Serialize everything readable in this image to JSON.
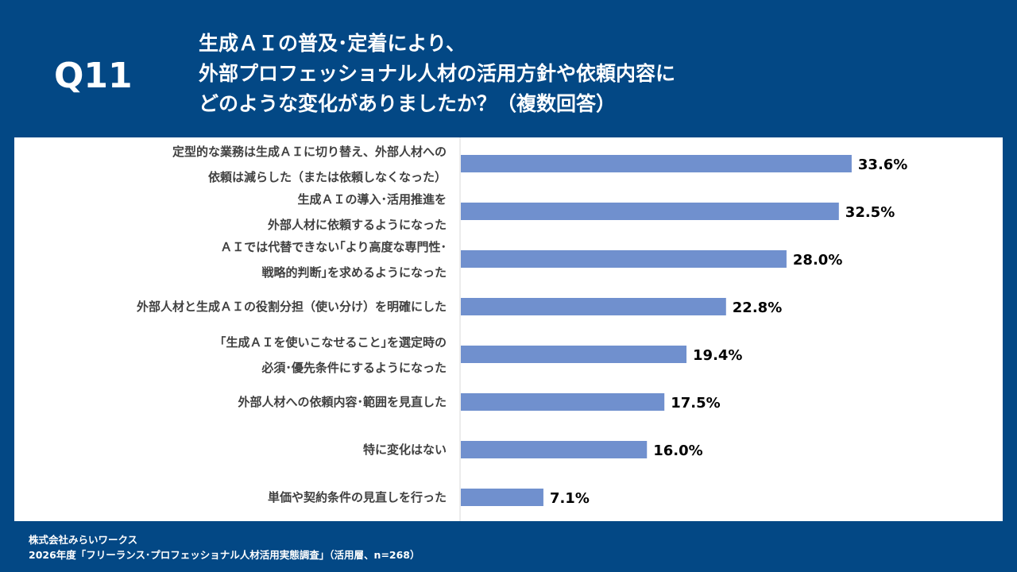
{
  "header": {
    "question_no": "Q11",
    "title_lines": [
      "生成ＡＩの普及･定着により、",
      "外部プロフェッショナル人材の活用方針や依頼内容に",
      "どのような変化がありましたか？（複数回答）"
    ]
  },
  "chart_data": {
    "type": "bar",
    "orientation": "horizontal",
    "categories": [
      [
        "定型的な業務は生成ＡＩに切り替え、外部人材への",
        "依頼は減らした（または依頼しなくなった）"
      ],
      [
        "生成ＡＩの導入･活用推進を",
        "外部人材に依頼するようになった"
      ],
      [
        "ＡＩでは代替できない｢より高度な専門性･",
        "戦略的判断｣を求めるようになった"
      ],
      [
        "外部人材と生成ＡＩの役割分担（使い分け）を明確にした"
      ],
      [
        "｢生成ＡＩを使いこなせること｣を選定時の",
        "必須･優先条件にするようになった"
      ],
      [
        "外部人材への依頼内容･範囲を見直した"
      ],
      [
        "特に変化はない"
      ],
      [
        "単価や契約条件の見直しを行った"
      ]
    ],
    "values": [
      33.6,
      32.5,
      28.0,
      22.8,
      19.4,
      17.5,
      16.0,
      7.1
    ],
    "value_labels": [
      "33.6%",
      "32.5%",
      "28.0%",
      "22.8%",
      "19.4%",
      "17.5%",
      "16.0%",
      "7.1%"
    ],
    "unit": "%",
    "xlim": [
      0,
      45
    ],
    "bar_color": "#7090CE",
    "grid": false
  },
  "footer": {
    "company": "株式会社みらいワークス",
    "source": "2026年度「フリーランス･プロフェッショナル人材活用実態調査」（活用層、n=268）"
  }
}
